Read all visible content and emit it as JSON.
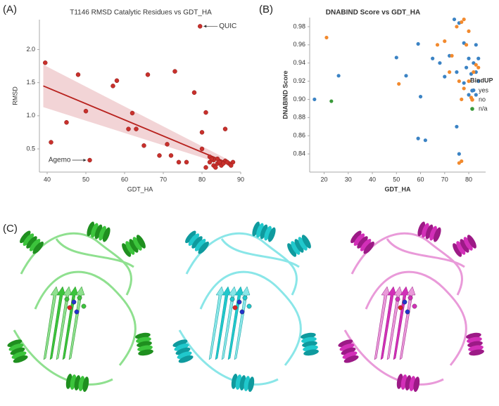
{
  "panels": [
    "(A)",
    "(B)",
    "(C)"
  ],
  "chart_data": [
    {
      "type": "scatter",
      "title": "T1146 RMSD Catalytic Residues vs GDT_HA",
      "x_label": "GDT_HA",
      "y_label": "RMSD",
      "color": "#c8302c",
      "x": [
        39.5,
        41,
        45,
        48,
        50,
        51,
        57,
        58,
        61,
        62,
        63,
        65,
        66,
        69,
        71,
        72,
        73,
        74,
        76,
        78,
        79.5,
        80,
        80,
        81,
        82,
        82,
        83,
        83,
        84,
        84,
        85,
        85,
        86,
        86,
        87,
        88,
        83.5,
        84.5,
        81,
        85.5,
        87.5,
        82.5,
        86.5
      ],
      "values": [
        1.8,
        0.6,
        0.9,
        1.62,
        1.07,
        0.33,
        1.45,
        1.53,
        0.8,
        1.04,
        0.8,
        0.55,
        1.62,
        0.4,
        0.57,
        0.4,
        1.67,
        0.3,
        0.3,
        1.35,
        2.35,
        0.75,
        0.5,
        1.05,
        0.38,
        0.3,
        0.25,
        0.33,
        0.28,
        0.35,
        0.3,
        0.25,
        0.32,
        0.8,
        0.28,
        0.3,
        0.22,
        0.3,
        0.22,
        0.28,
        0.25,
        0.35,
        0.3
      ],
      "trend": {
        "color": "#b8221e",
        "band_color": "#e9b7ba",
        "x": [
          39,
          87
        ],
        "values": [
          1.45,
          0.28
        ],
        "lower": [
          1.13,
          0.24
        ],
        "upper": [
          1.77,
          0.33
        ]
      },
      "annotations": [
        {
          "text": "QUIC",
          "x": 79.5,
          "y": 2.35
        },
        {
          "text": "Agemo",
          "x": 51,
          "y": 0.33
        }
      ],
      "xlim": [
        38,
        90
      ],
      "xticks": [
        40,
        50,
        60,
        70,
        80,
        90
      ],
      "ylim": [
        0.15,
        2.45
      ],
      "yticks": [
        0.5,
        {
          "value": 1,
          "label": "1.0"
        },
        1.5,
        {
          "value": 2,
          "label": "2.0"
        }
      ]
    },
    {
      "type": "scatter",
      "title": "DNABIND Score vs GDT_HA",
      "x_label": "GDT_HA",
      "y_label": "DNABIND Score",
      "legend_title": "BindUP",
      "legend": "right",
      "series": [
        {
          "name": "yes",
          "color": "#3b83c4",
          "x": [
            16,
            26,
            50,
            54,
            59,
            59,
            62,
            60,
            65,
            68,
            70,
            72,
            74,
            76,
            75,
            78,
            80,
            82,
            83,
            84,
            82,
            83,
            75,
            76,
            79,
            81,
            84,
            78,
            80,
            83
          ],
          "values": [
            0.9,
            0.926,
            0.946,
            0.926,
            0.961,
            0.857,
            0.855,
            0.903,
            0.945,
            0.94,
            0.925,
            0.948,
            0.988,
            0.984,
            0.93,
            0.962,
            0.945,
            0.94,
            0.93,
            0.92,
            0.91,
            0.96,
            0.87,
            0.84,
            0.935,
            0.928,
            0.945,
            0.918,
            0.905,
            0.905
          ]
        },
        {
          "name": "no",
          "color": "#f28a2e",
          "x": [
            21,
            51,
            67,
            70,
            73,
            75,
            77,
            78,
            80,
            76,
            72,
            77,
            80,
            82,
            83,
            76,
            77,
            79,
            81,
            78,
            84
          ],
          "values": [
            0.968,
            0.917,
            0.96,
            0.964,
            0.948,
            0.98,
            0.985,
            0.988,
            0.975,
            0.92,
            0.93,
            0.9,
            0.92,
            0.93,
            0.938,
            0.83,
            0.832,
            0.96,
            0.902,
            0.912,
            0.935
          ]
        },
        {
          "name": "n/a",
          "color": "#3a9a3a",
          "x": [
            23
          ],
          "values": [
            0.898
          ]
        }
      ],
      "xlim": [
        14,
        87
      ],
      "xticks": [
        20,
        30,
        40,
        50,
        60,
        70,
        80
      ],
      "ylim": [
        0.82,
        0.99
      ],
      "yticks": [
        0.84,
        0.86,
        0.88,
        {
          "value": 0.9,
          "label": "0.90"
        },
        0.92,
        0.94,
        0.96,
        0.98
      ]
    }
  ]
}
